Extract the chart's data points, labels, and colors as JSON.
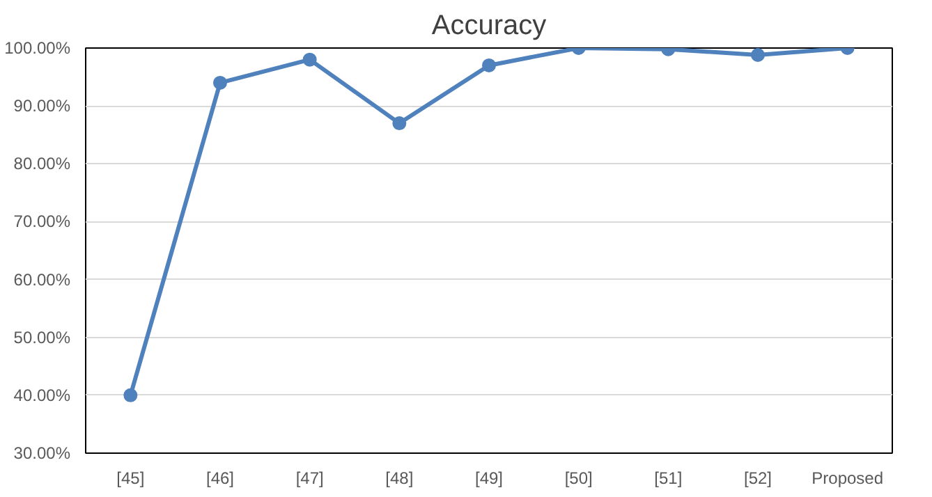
{
  "chart_data": {
    "type": "line",
    "title": "Accuracy",
    "categories": [
      "[45]",
      "[46]",
      "[47]",
      "[48]",
      "[49]",
      "[50]",
      "[51]",
      "[52]",
      "Proposed"
    ],
    "series": [
      {
        "color": "#4f81bd",
        "values": [
          40,
          94,
          98,
          87,
          97,
          100,
          99.8,
          98.8,
          100
        ]
      }
    ],
    "ylim": [
      30,
      100
    ],
    "yticks": [
      {
        "value": 30,
        "label": "30.00%"
      },
      {
        "value": 40,
        "label": "40.00%"
      },
      {
        "value": 50,
        "label": "50.00%"
      },
      {
        "value": 60,
        "label": "60.00%"
      },
      {
        "value": 70,
        "label": "70.00%"
      },
      {
        "value": 80,
        "label": "80.00%"
      },
      {
        "value": 90,
        "label": "90.00%"
      },
      {
        "value": 100,
        "label": "100.00%"
      }
    ],
    "grid": "y",
    "marker": "circle",
    "line_style": "solid"
  }
}
